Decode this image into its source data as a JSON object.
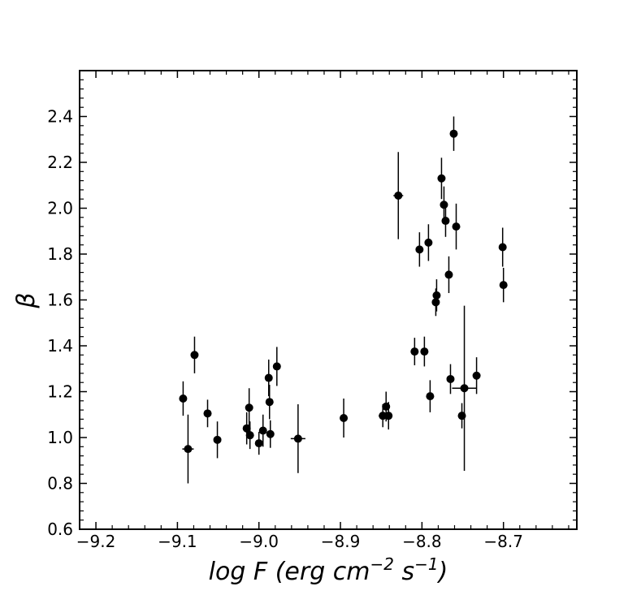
{
  "chart_data": {
    "type": "scatter",
    "xlabel_parts": [
      "log F (erg cm",
      "−2",
      " s",
      "−1",
      ")"
    ],
    "ylabel": "β",
    "xlim": [
      -9.22,
      -8.61
    ],
    "ylim": [
      0.6,
      2.6
    ],
    "x_ticks": [
      -9.2,
      -9.1,
      -9.0,
      -8.9,
      -8.8,
      -8.7
    ],
    "x_tick_labels": [
      "−9.2",
      "−9.1",
      "−9.0",
      "−8.9",
      "−8.8",
      "−8.7"
    ],
    "y_ticks": [
      0.6,
      0.8,
      1.0,
      1.2,
      1.4,
      1.6,
      1.8,
      2.0,
      2.2,
      2.4
    ],
    "y_tick_labels": [
      "0.6",
      "0.8",
      "1.0",
      "1.2",
      "1.4",
      "1.6",
      "1.8",
      "2.0",
      "2.2",
      "2.4"
    ],
    "grid": false,
    "marker_color": "#000000",
    "points": [
      {
        "x": -9.093,
        "y": 1.17,
        "yerr": 0.075,
        "xerr": 0
      },
      {
        "x": -9.087,
        "y": 0.95,
        "yerr": 0.15,
        "xerr": 0.007
      },
      {
        "x": -9.079,
        "y": 1.36,
        "yerr": 0.08,
        "xerr": 0
      },
      {
        "x": -9.063,
        "y": 1.105,
        "yerr": 0.06,
        "xerr": 0
      },
      {
        "x": -9.051,
        "y": 0.99,
        "yerr": 0.08,
        "xerr": 0
      },
      {
        "x": -9.015,
        "y": 1.04,
        "yerr": 0.07,
        "xerr": 0
      },
      {
        "x": -9.012,
        "y": 1.13,
        "yerr": 0.085,
        "xerr": 0
      },
      {
        "x": -9.011,
        "y": 1.01,
        "yerr": 0.06,
        "xerr": 0
      },
      {
        "x": -9.0,
        "y": 0.975,
        "yerr": 0.05,
        "xerr": 0
      },
      {
        "x": -8.995,
        "y": 1.03,
        "yerr": 0.07,
        "xerr": 0
      },
      {
        "x": -8.988,
        "y": 1.26,
        "yerr": 0.08,
        "xerr": 0
      },
      {
        "x": -8.987,
        "y": 1.155,
        "yerr": 0.075,
        "xerr": 0
      },
      {
        "x": -8.986,
        "y": 1.015,
        "yerr": 0.06,
        "xerr": 0
      },
      {
        "x": -8.978,
        "y": 1.31,
        "yerr": 0.085,
        "xerr": 0
      },
      {
        "x": -8.952,
        "y": 0.995,
        "yerr": 0.15,
        "xerr": 0.009
      },
      {
        "x": -8.896,
        "y": 1.085,
        "yerr": 0.085,
        "xerr": 0
      },
      {
        "x": -8.848,
        "y": 1.095,
        "yerr": 0.05,
        "xerr": 0.005
      },
      {
        "x": -8.844,
        "y": 1.135,
        "yerr": 0.065,
        "xerr": 0
      },
      {
        "x": -8.841,
        "y": 1.095,
        "yerr": 0.06,
        "xerr": 0
      },
      {
        "x": -8.829,
        "y": 2.055,
        "yerr": 0.19,
        "xerr": 0.006
      },
      {
        "x": -8.809,
        "y": 1.375,
        "yerr": 0.06,
        "xerr": 0
      },
      {
        "x": -8.803,
        "y": 1.82,
        "yerr": 0.075,
        "xerr": 0
      },
      {
        "x": -8.797,
        "y": 1.375,
        "yerr": 0.065,
        "xerr": 0
      },
      {
        "x": -8.792,
        "y": 1.85,
        "yerr": 0.08,
        "xerr": 0
      },
      {
        "x": -8.79,
        "y": 1.18,
        "yerr": 0.07,
        "xerr": 0
      },
      {
        "x": -8.783,
        "y": 1.59,
        "yerr": 0.06,
        "xerr": 0
      },
      {
        "x": -8.782,
        "y": 1.62,
        "yerr": 0.07,
        "xerr": 0
      },
      {
        "x": -8.776,
        "y": 2.13,
        "yerr": 0.09,
        "xerr": 0
      },
      {
        "x": -8.773,
        "y": 2.015,
        "yerr": 0.08,
        "xerr": 0
      },
      {
        "x": -8.771,
        "y": 1.945,
        "yerr": 0.07,
        "xerr": 0
      },
      {
        "x": -8.767,
        "y": 1.71,
        "yerr": 0.08,
        "xerr": 0
      },
      {
        "x": -8.765,
        "y": 1.255,
        "yerr": 0.065,
        "xerr": 0
      },
      {
        "x": -8.761,
        "y": 2.325,
        "yerr": 0.075,
        "xerr": 0
      },
      {
        "x": -8.758,
        "y": 1.92,
        "yerr": 0.1,
        "xerr": 0
      },
      {
        "x": -8.751,
        "y": 1.095,
        "yerr": 0.055,
        "xerr": 0
      },
      {
        "x": -8.748,
        "y": 1.215,
        "yerr": 0.36,
        "xerr": 0.015
      },
      {
        "x": -8.733,
        "y": 1.27,
        "yerr": 0.08,
        "xerr": 0
      },
      {
        "x": -8.701,
        "y": 1.83,
        "yerr": 0.085,
        "xerr": 0
      },
      {
        "x": -8.7,
        "y": 1.665,
        "yerr": 0.075,
        "xerr": 0
      }
    ]
  }
}
